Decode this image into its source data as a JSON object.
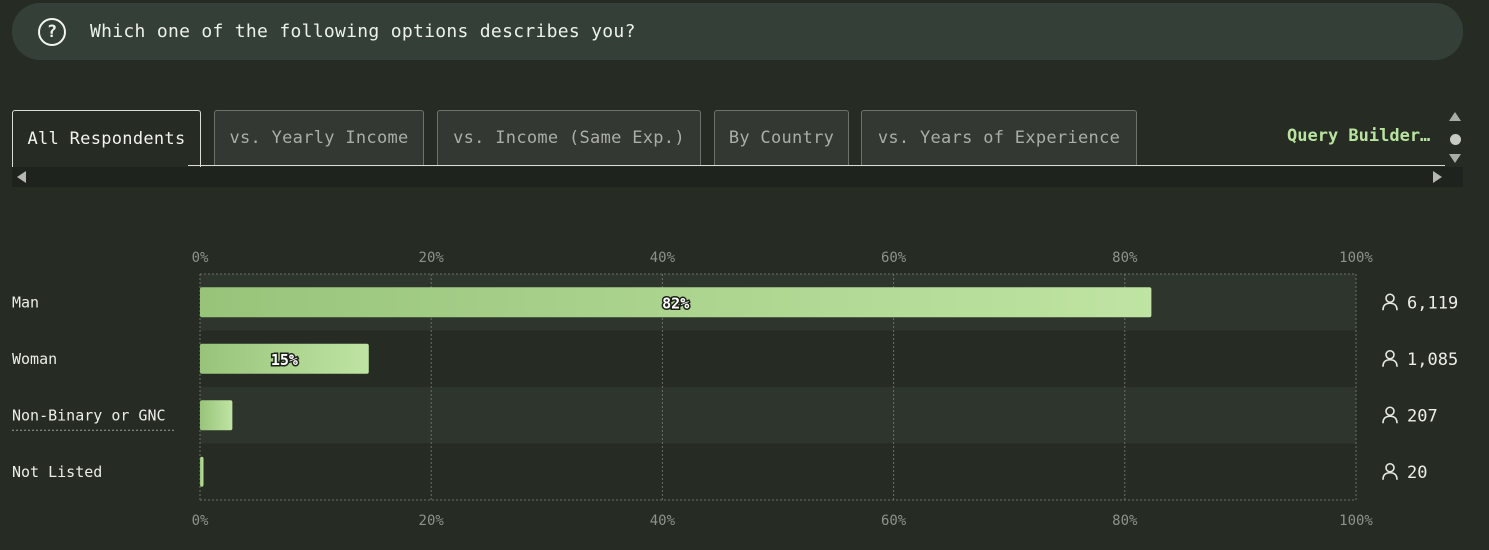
{
  "question": {
    "text": "Which one of the following options describes you?"
  },
  "tabs": [
    {
      "label": "All Respondents",
      "active": true
    },
    {
      "label": "vs. Yearly Income",
      "active": false
    },
    {
      "label": "vs. Income (Same Exp.)",
      "active": false
    },
    {
      "label": "By Country",
      "active": false
    },
    {
      "label": "vs. Years of Experience",
      "active": false
    }
  ],
  "query_builder": {
    "label": "Query Builder…"
  },
  "chart_data": {
    "type": "bar",
    "orientation": "horizontal",
    "categories": [
      "Man",
      "Woman",
      "Non-Binary or GNC",
      "Not Listed"
    ],
    "values": [
      82.3,
      14.6,
      2.8,
      0.3
    ],
    "data_labels": [
      "82%",
      "15%",
      "",
      ""
    ],
    "counts": [
      "6,119",
      "1,085",
      "207",
      "20"
    ],
    "x_ticks": [
      "0%",
      "20%",
      "40%",
      "60%",
      "80%",
      "100%"
    ],
    "xlim": [
      0,
      100
    ],
    "grid": true,
    "colors": {
      "bar_start": "#98c47a",
      "bar_end": "#bfe4a3",
      "row_alt": "#2e352c",
      "grid": "#6a7067"
    }
  }
}
